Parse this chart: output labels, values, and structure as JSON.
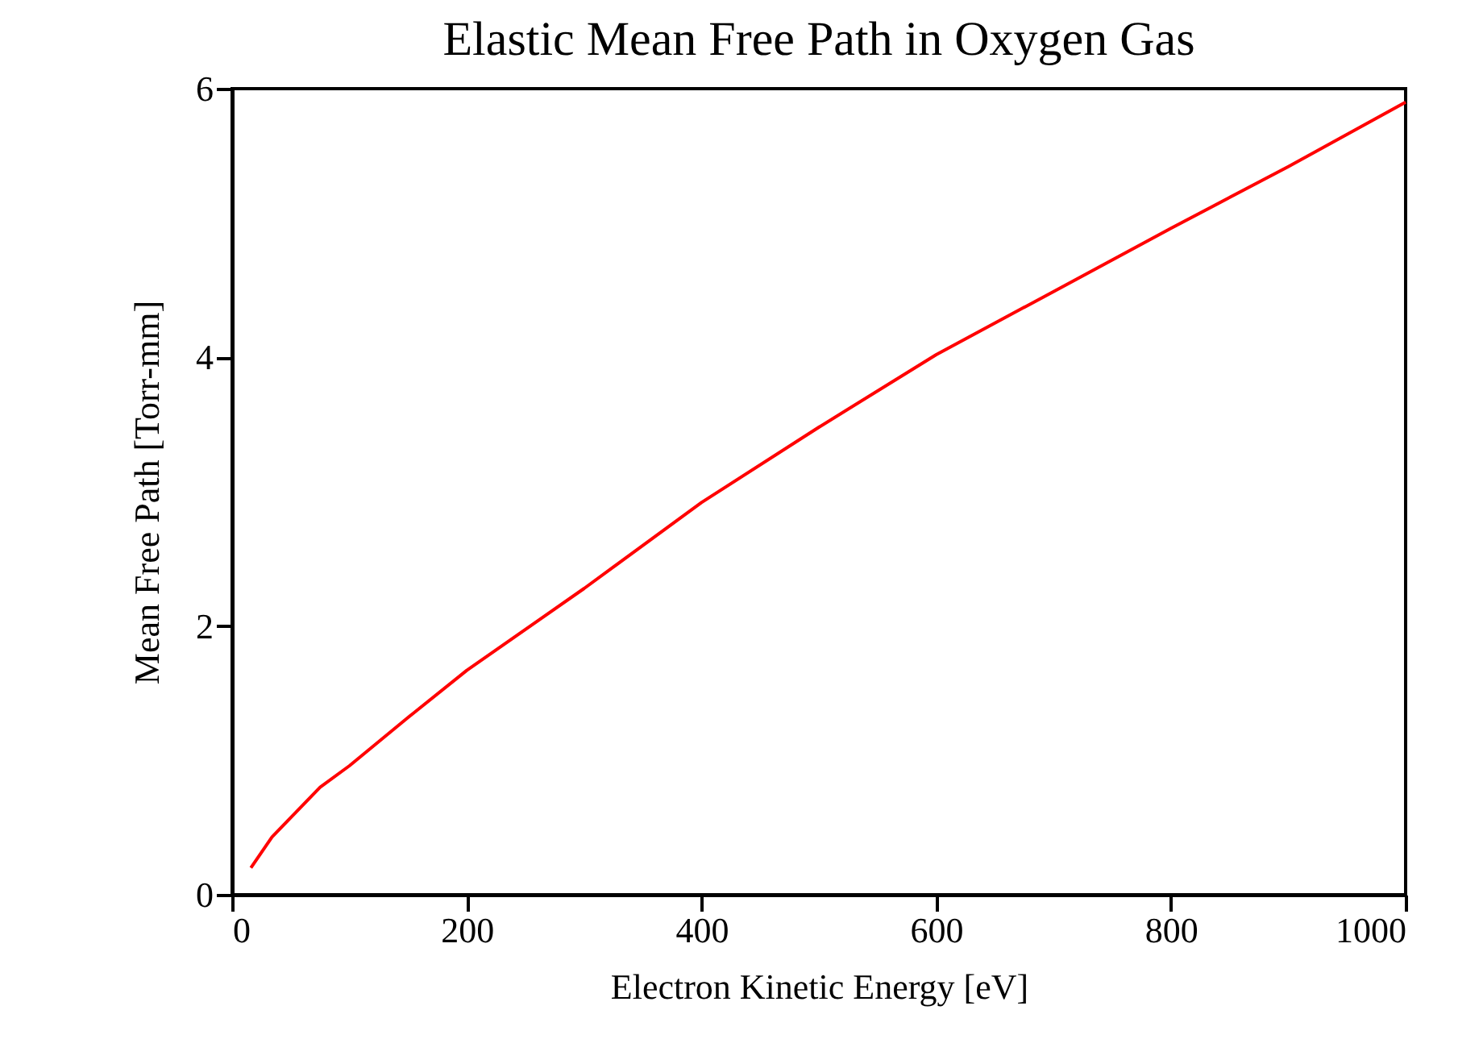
{
  "chart_data": {
    "type": "line",
    "title": "Elastic Mean Free Path in Oxygen Gas",
    "xlabel": "Electron Kinetic Energy [eV]",
    "ylabel": "Mean Free Path [Torr-mm]",
    "x": [
      16,
      34,
      75,
      100,
      150,
      200,
      300,
      400,
      500,
      600,
      700,
      800,
      900,
      1000
    ],
    "series": [
      {
        "color": "#ff0000",
        "values": [
          0.2,
          0.43,
          0.8,
          0.96,
          1.32,
          1.67,
          2.28,
          2.92,
          3.48,
          4.02,
          4.49,
          4.96,
          5.42,
          5.9
        ]
      }
    ],
    "xlim": [
      0,
      1000
    ],
    "ylim": [
      0,
      6
    ],
    "xticks": [
      0,
      200,
      400,
      600,
      800,
      1000
    ],
    "yticks": [
      0,
      2,
      4,
      6
    ],
    "grid": false,
    "marker": "none",
    "line_style": "solid"
  }
}
